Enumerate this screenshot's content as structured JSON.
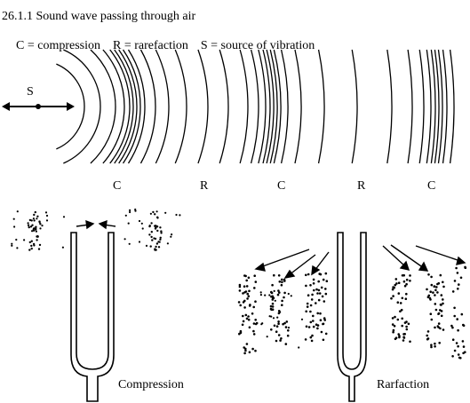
{
  "title": "26.1.1 Sound wave passing through air",
  "legend": "C = compression    R = rarefaction    S = source of vibration",
  "source_label": "S",
  "wave_labels": [
    "C",
    "R",
    "C",
    "R",
    "C"
  ],
  "fork_left_caption": "Compression",
  "fork_right_caption": "Rarfaction",
  "colors": {
    "ink": "#000000",
    "paper": "#ffffff"
  }
}
